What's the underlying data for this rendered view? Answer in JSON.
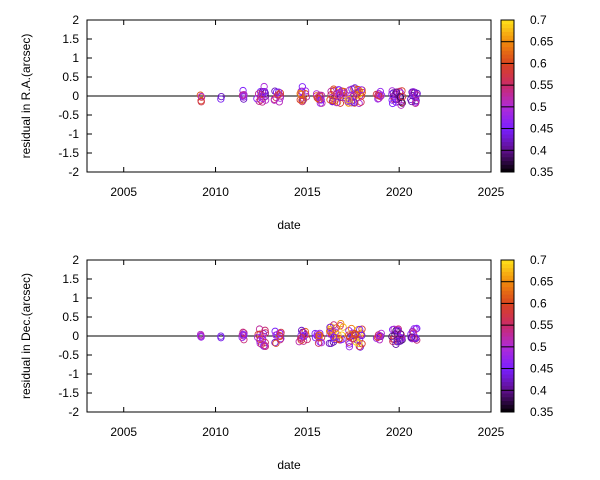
{
  "chart_data": [
    {
      "type": "scatter",
      "xlabel": "date",
      "ylabel": "residual in R.A.(arcsec)",
      "xlim": [
        2003,
        2025
      ],
      "ylim": [
        -2,
        2
      ],
      "xticks": [
        "2005",
        "2010",
        "2015",
        "2020",
        "2025"
      ],
      "yticks": [
        "2",
        "1.5",
        "1",
        "0.5",
        "0",
        "-0.5",
        "-1",
        "-1.5",
        "-2"
      ],
      "grid": false,
      "zero_line": true,
      "marker": "open-circle",
      "colorbar": {
        "min": 0.35,
        "max": 0.7,
        "ticks": [
          "0.7",
          "0.65",
          "0.6",
          "0.55",
          "0.5",
          "0.45",
          "0.4",
          "0.35"
        ],
        "palette": [
          "#000000",
          "#5e0f8a",
          "#7a1fff",
          "#b02bd8",
          "#c92a6a",
          "#d8431f",
          "#f08a0c",
          "#ffe21a"
        ]
      },
      "clusters": [
        {
          "x": 2009.2,
          "spread": 0.04,
          "count": 5,
          "ymin": -0.2,
          "ymax": 0.05,
          "cmin": 0.4,
          "cmax": 0.7
        },
        {
          "x": 2010.3,
          "spread": 0.02,
          "count": 2,
          "ymin": -0.1,
          "ymax": 0.0,
          "cmin": 0.42,
          "cmax": 0.45
        },
        {
          "x": 2011.5,
          "spread": 0.05,
          "count": 8,
          "ymin": -0.15,
          "ymax": 0.25,
          "cmin": 0.4,
          "cmax": 0.55
        },
        {
          "x": 2012.5,
          "spread": 0.25,
          "count": 18,
          "ymin": -0.2,
          "ymax": 0.25,
          "cmin": 0.4,
          "cmax": 0.6
        },
        {
          "x": 2013.4,
          "spread": 0.2,
          "count": 12,
          "ymin": -0.2,
          "ymax": 0.15,
          "cmin": 0.4,
          "cmax": 0.6
        },
        {
          "x": 2014.8,
          "spread": 0.25,
          "count": 14,
          "ymin": -0.15,
          "ymax": 0.25,
          "cmin": 0.4,
          "cmax": 0.65
        },
        {
          "x": 2015.6,
          "spread": 0.2,
          "count": 14,
          "ymin": -0.2,
          "ymax": 0.15,
          "cmin": 0.45,
          "cmax": 0.62
        },
        {
          "x": 2016.6,
          "spread": 0.4,
          "count": 30,
          "ymin": -0.2,
          "ymax": 0.2,
          "cmin": 0.4,
          "cmax": 0.68
        },
        {
          "x": 2017.6,
          "spread": 0.4,
          "count": 32,
          "ymin": -0.2,
          "ymax": 0.25,
          "cmin": 0.42,
          "cmax": 0.7
        },
        {
          "x": 2018.9,
          "spread": 0.15,
          "count": 10,
          "ymin": -0.1,
          "ymax": 0.15,
          "cmin": 0.4,
          "cmax": 0.6
        },
        {
          "x": 2019.9,
          "spread": 0.3,
          "count": 26,
          "ymin": -0.25,
          "ymax": 0.15,
          "cmin": 0.38,
          "cmax": 0.6
        },
        {
          "x": 2020.8,
          "spread": 0.18,
          "count": 16,
          "ymin": -0.2,
          "ymax": 0.15,
          "cmin": 0.38,
          "cmax": 0.55
        }
      ]
    },
    {
      "type": "scatter",
      "xlabel": "date",
      "ylabel": "residual in Dec.(arcsec)",
      "xlim": [
        2003,
        2025
      ],
      "ylim": [
        -2,
        2
      ],
      "xticks": [
        "2005",
        "2010",
        "2015",
        "2020",
        "2025"
      ],
      "yticks": [
        "2",
        "1.5",
        "1",
        "0.5",
        "0",
        "-0.5",
        "-1",
        "-1.5",
        "-2"
      ],
      "grid": false,
      "zero_line": true,
      "marker": "open-circle",
      "colorbar": {
        "min": 0.35,
        "max": 0.7,
        "ticks": [
          "0.7",
          "0.65",
          "0.6",
          "0.55",
          "0.5",
          "0.45",
          "0.4",
          "0.35"
        ],
        "palette": [
          "#000000",
          "#5e0f8a",
          "#7a1fff",
          "#b02bd8",
          "#c92a6a",
          "#d8431f",
          "#f08a0c",
          "#ffe21a"
        ]
      },
      "clusters": [
        {
          "x": 2009.2,
          "spread": 0.04,
          "count": 4,
          "ymin": -0.05,
          "ymax": 0.05,
          "cmin": 0.4,
          "cmax": 0.7
        },
        {
          "x": 2010.3,
          "spread": 0.02,
          "count": 2,
          "ymin": -0.05,
          "ymax": 0.0,
          "cmin": 0.42,
          "cmax": 0.45
        },
        {
          "x": 2011.5,
          "spread": 0.05,
          "count": 8,
          "ymin": -0.1,
          "ymax": 0.1,
          "cmin": 0.4,
          "cmax": 0.55
        },
        {
          "x": 2012.5,
          "spread": 0.25,
          "count": 18,
          "ymin": -0.3,
          "ymax": 0.2,
          "cmin": 0.4,
          "cmax": 0.6
        },
        {
          "x": 2013.4,
          "spread": 0.2,
          "count": 12,
          "ymin": -0.2,
          "ymax": 0.15,
          "cmin": 0.4,
          "cmax": 0.6
        },
        {
          "x": 2014.8,
          "spread": 0.25,
          "count": 14,
          "ymin": -0.15,
          "ymax": 0.2,
          "cmin": 0.4,
          "cmax": 0.65
        },
        {
          "x": 2015.6,
          "spread": 0.2,
          "count": 14,
          "ymin": -0.2,
          "ymax": 0.1,
          "cmin": 0.45,
          "cmax": 0.65
        },
        {
          "x": 2016.6,
          "spread": 0.4,
          "count": 30,
          "ymin": -0.2,
          "ymax": 0.35,
          "cmin": 0.4,
          "cmax": 0.7
        },
        {
          "x": 2017.6,
          "spread": 0.4,
          "count": 32,
          "ymin": -0.3,
          "ymax": 0.2,
          "cmin": 0.42,
          "cmax": 0.7
        },
        {
          "x": 2018.9,
          "spread": 0.15,
          "count": 10,
          "ymin": -0.1,
          "ymax": 0.1,
          "cmin": 0.4,
          "cmax": 0.6
        },
        {
          "x": 2019.9,
          "spread": 0.3,
          "count": 26,
          "ymin": -0.25,
          "ymax": 0.2,
          "cmin": 0.38,
          "cmax": 0.6
        },
        {
          "x": 2020.8,
          "spread": 0.18,
          "count": 16,
          "ymin": -0.25,
          "ymax": 0.25,
          "cmin": 0.38,
          "cmax": 0.55
        }
      ]
    }
  ]
}
